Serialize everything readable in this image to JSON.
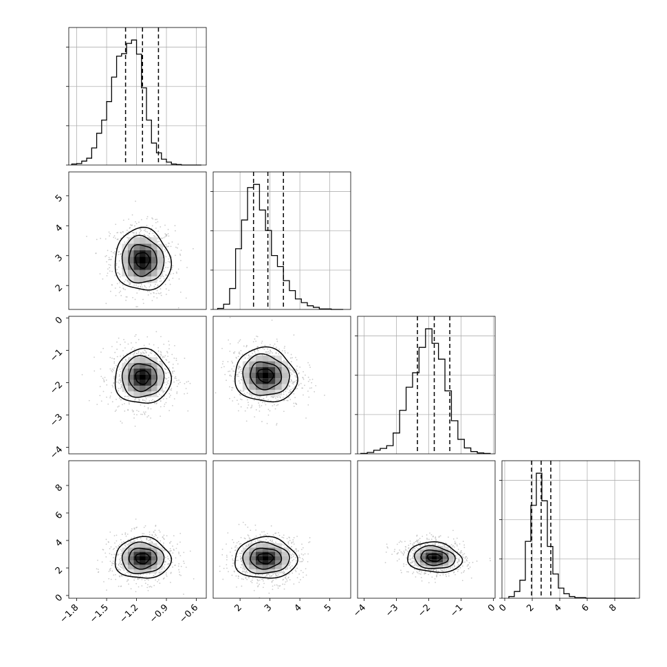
{
  "chart_data": {
    "type": "corner",
    "n_params": 4,
    "grid": true,
    "parameters": [
      {
        "index": 0,
        "range": [
          -1.88,
          -0.5
        ],
        "ticks": [
          -1.8,
          -1.5,
          -1.2,
          -0.9,
          -0.6
        ],
        "tick_labels": [
          "−1.8",
          "−1.5",
          "−1.2",
          "−0.9",
          "−0.6"
        ],
        "quantiles": [
          -1.31,
          -1.14,
          -0.98
        ],
        "bin_edges": [
          -1.85,
          -1.8,
          -1.75,
          -1.7,
          -1.65,
          -1.6,
          -1.55,
          -1.5,
          -1.45,
          -1.4,
          -1.35,
          -1.3,
          -1.25,
          -1.2,
          -1.15,
          -1.1,
          -1.05,
          -1.0,
          -0.95,
          -0.9,
          -0.85,
          -0.8,
          -0.75,
          -0.7,
          -0.65,
          -0.6,
          -0.55
        ],
        "counts": [
          2,
          3,
          8,
          14,
          35,
          65,
          92,
          130,
          180,
          223,
          228,
          249,
          256,
          227,
          158,
          92,
          45,
          25,
          12,
          6,
          2,
          1,
          0,
          0,
          0,
          0
        ]
      },
      {
        "index": 1,
        "range": [
          1.1,
          5.7
        ],
        "ticks": [
          2,
          3,
          4,
          5
        ],
        "tick_labels": [
          "2",
          "3",
          "4",
          "5"
        ],
        "quantiles": [
          2.45,
          2.93,
          3.45
        ],
        "bin_edges": [
          1.25,
          1.45,
          1.65,
          1.85,
          2.05,
          2.25,
          2.45,
          2.65,
          2.85,
          3.05,
          3.25,
          3.45,
          3.65,
          3.85,
          4.05,
          4.25,
          4.45,
          4.65,
          4.85,
          5.05,
          5.25,
          5.45
        ],
        "counts": [
          2,
          10,
          40,
          116,
          171,
          233,
          239,
          190,
          151,
          103,
          82,
          55,
          36,
          20,
          13,
          7,
          4,
          1,
          1,
          0,
          0
        ],
        "ylim_axis": [
          1.2,
          5.8
        ],
        "yticks": [
          2,
          3,
          4,
          5
        ],
        "ytick_labels": [
          "2",
          "3",
          "4",
          "5"
        ]
      },
      {
        "index": 2,
        "range": [
          -4.2,
          0.05
        ],
        "ticks": [
          -4,
          -3,
          -2,
          -1,
          0
        ],
        "tick_labels": [
          "−4",
          "−3",
          "−2",
          "−1",
          "0"
        ],
        "quantiles": [
          -2.35,
          -1.83,
          -1.35
        ],
        "bin_edges": [
          -4.1,
          -3.9,
          -3.7,
          -3.5,
          -3.3,
          -3.1,
          -2.9,
          -2.7,
          -2.5,
          -2.3,
          -2.1,
          -1.9,
          -1.7,
          -1.5,
          -1.3,
          -1.1,
          -0.9,
          -0.7,
          -0.5,
          -0.3,
          -0.1
        ],
        "counts": [
          1,
          3,
          8,
          12,
          18,
          46,
          96,
          147,
          179,
          235,
          276,
          244,
          209,
          139,
          73,
          32,
          13,
          5,
          2,
          1
        ],
        "yticks": [
          0,
          -1,
          -2,
          -3,
          -4
        ],
        "ytick_labels": [
          "0",
          "−1",
          "−2",
          "−3",
          "−4"
        ]
      },
      {
        "index": 3,
        "range": [
          -0.2,
          9.8
        ],
        "ticks": [
          0,
          2,
          4,
          6,
          8
        ],
        "tick_labels": [
          "0",
          "2",
          "4",
          "6",
          "8"
        ],
        "quantiles": [
          1.95,
          2.65,
          3.35
        ],
        "bin_edges": [
          0.3,
          0.7,
          1.1,
          1.5,
          1.9,
          2.3,
          2.7,
          3.1,
          3.5,
          3.9,
          4.3,
          4.7,
          5.1,
          5.5,
          5.9,
          6.3,
          6.7,
          7.1,
          7.5,
          7.9,
          8.3,
          8.7,
          9.1,
          9.5
        ],
        "counts": [
          3,
          12,
          32,
          101,
          165,
          222,
          173,
          92,
          43,
          18,
          8,
          3,
          1,
          1,
          0,
          0,
          0,
          0,
          0,
          0,
          0,
          0,
          0
        ],
        "yticks": [
          0,
          2,
          4,
          6,
          8
        ],
        "ytick_labels": [
          "0",
          "2",
          "4",
          "6",
          "8"
        ]
      }
    ],
    "pairs": [
      {
        "x": 0,
        "y": 1,
        "mean": [
          -1.14,
          2.85
        ],
        "sd": [
          0.14,
          0.52
        ],
        "corr": -0.05
      },
      {
        "x": 0,
        "y": 2,
        "mean": [
          -1.14,
          -1.83
        ],
        "sd": [
          0.14,
          0.42
        ],
        "corr": 0.0
      },
      {
        "x": 1,
        "y": 2,
        "mean": [
          2.85,
          -1.78
        ],
        "sd": [
          0.52,
          0.42
        ],
        "corr": -0.08
      },
      {
        "x": 0,
        "y": 3,
        "mean": [
          -1.14,
          2.7
        ],
        "sd": [
          0.14,
          0.75
        ],
        "corr": 0.0
      },
      {
        "x": 1,
        "y": 3,
        "mean": [
          2.85,
          2.7
        ],
        "sd": [
          0.52,
          0.75
        ],
        "corr": 0.0
      },
      {
        "x": 2,
        "y": 3,
        "mean": [
          -1.83,
          2.75
        ],
        "sd": [
          0.42,
          0.55
        ],
        "corr": -0.12
      }
    ],
    "contour_levels_sigma": [
      0.5,
      1.0,
      1.5,
      2.0
    ],
    "colors": {
      "line": "#000000",
      "grid": "#b0b0b0",
      "points": "#b3b3b3",
      "density_dark": "#000000"
    }
  }
}
